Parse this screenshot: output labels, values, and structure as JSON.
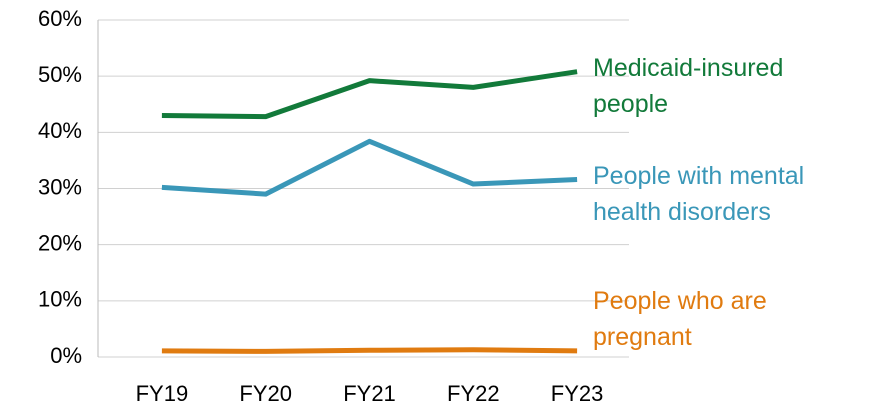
{
  "chart_data": {
    "type": "line",
    "categories": [
      "FY19",
      "FY20",
      "FY21",
      "FY22",
      "FY23"
    ],
    "series": [
      {
        "name": "Medicaid-insured people",
        "color": "#127a3a",
        "values": [
          43,
          42.8,
          49.2,
          48,
          50.8
        ]
      },
      {
        "name": "People with mental health disorders",
        "color": "#3a97b8",
        "values": [
          30.2,
          29,
          38.4,
          30.8,
          31.6
        ]
      },
      {
        "name": "People who are pregnant",
        "color": "#e07b10",
        "values": [
          1.1,
          1.0,
          1.2,
          1.3,
          1.1
        ]
      }
    ],
    "ylim": [
      0,
      60
    ],
    "yticks": [
      {
        "value": 0,
        "label": "0%"
      },
      {
        "value": 10,
        "label": "10%"
      },
      {
        "value": 20,
        "label": "20%"
      },
      {
        "value": 30,
        "label": "30%"
      },
      {
        "value": 40,
        "label": "40%"
      },
      {
        "value": 50,
        "label": "50%"
      },
      {
        "value": 60,
        "label": "60%"
      }
    ],
    "grid": true
  }
}
